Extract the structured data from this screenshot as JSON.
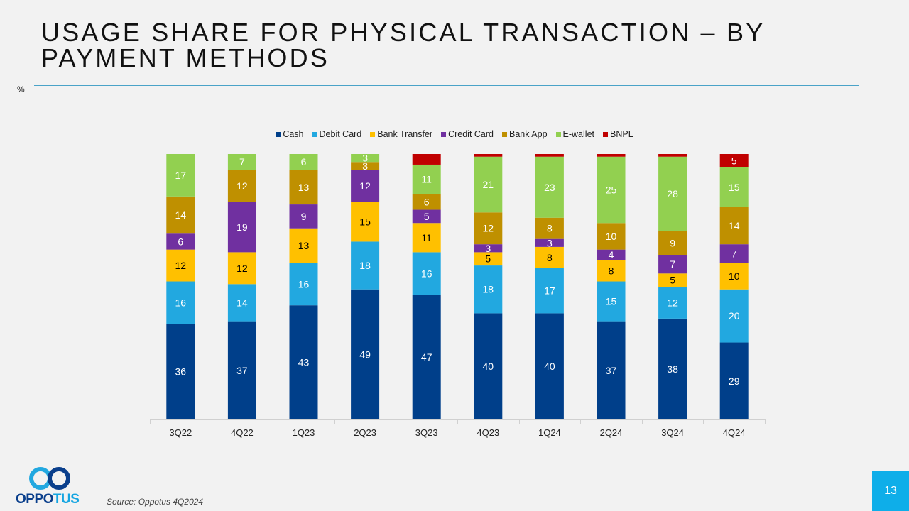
{
  "slide": {
    "title": "USAGE SHARE FOR PHYSICAL TRANSACTION – BY PAYMENT METHODS",
    "unit_label": "%",
    "source": "Source: Oppotus 4Q2024",
    "page_number": "13",
    "logo": {
      "part1": "OPPO",
      "part2": "TUS"
    }
  },
  "colors": {
    "Cash": "#003f8a",
    "Debit Card": "#22a8e0",
    "Bank Transfer": "#ffc000",
    "Credit Card": "#7030a0",
    "Bank App": "#bf9000",
    "E-wallet": "#92d050",
    "BNPL": "#c00000",
    "accent_rule": "#4aa3c8",
    "page_box": "#0eaee9"
  },
  "chart_data": {
    "type": "bar",
    "stacked": true,
    "title": "",
    "xlabel": "",
    "ylabel": "%",
    "ylim": [
      0,
      100
    ],
    "grid": false,
    "legend_position": "top-center",
    "categories": [
      "3Q22",
      "4Q22",
      "1Q23",
      "2Q23",
      "3Q23",
      "4Q23",
      "1Q24",
      "2Q24",
      "3Q24",
      "4Q24"
    ],
    "series": [
      {
        "name": "Cash",
        "values": [
          36,
          37,
          43,
          49,
          47,
          40,
          40,
          37,
          38,
          29
        ],
        "label_color": "#ffffff"
      },
      {
        "name": "Debit Card",
        "values": [
          16,
          14,
          16,
          18,
          16,
          18,
          17,
          15,
          12,
          20
        ],
        "label_color": "#ffffff"
      },
      {
        "name": "Bank Transfer",
        "values": [
          12,
          12,
          13,
          15,
          11,
          5,
          8,
          8,
          5,
          10
        ],
        "label_color": "#000000"
      },
      {
        "name": "Credit Card",
        "values": [
          6,
          19,
          9,
          12,
          5,
          3,
          3,
          4,
          7,
          7
        ],
        "label_color": "#ffffff"
      },
      {
        "name": "Bank App",
        "values": [
          14,
          12,
          13,
          3,
          6,
          12,
          8,
          10,
          9,
          14
        ],
        "label_color": "#ffffff"
      },
      {
        "name": "E-wallet",
        "values": [
          17,
          7,
          6,
          3,
          11,
          21,
          23,
          25,
          28,
          15
        ],
        "label_color": "#ffffff"
      },
      {
        "name": "BNPL",
        "values": [
          0,
          0,
          0,
          0,
          4,
          1,
          1,
          1,
          1,
          5
        ],
        "label_color": "#ffffff",
        "labels_shown": [
          false,
          false,
          false,
          false,
          false,
          false,
          false,
          false,
          false,
          true
        ]
      }
    ]
  }
}
